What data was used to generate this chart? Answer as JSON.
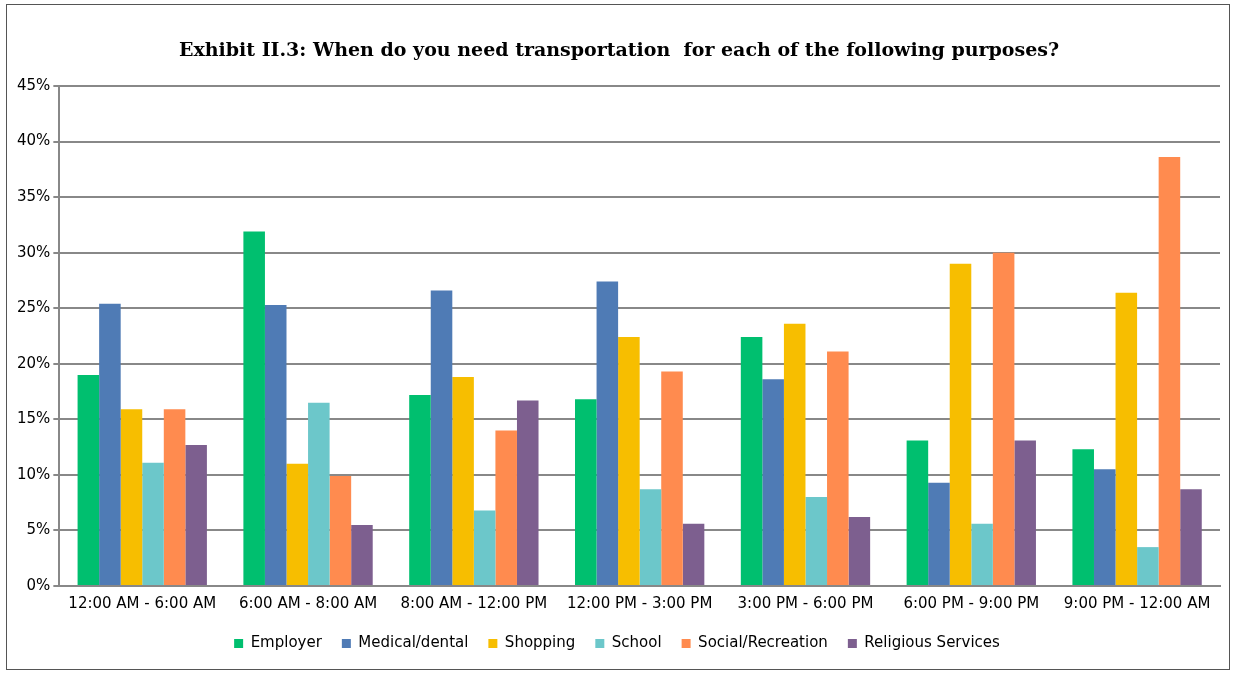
{
  "chart_data": {
    "type": "bar",
    "title": "Exhibit II.3: When do you need transportation  for each of the following purposes?",
    "categories": [
      "12:00 AM - 6:00 AM",
      "6:00 AM - 8:00 AM",
      "8:00 AM - 12:00 PM",
      "12:00 PM - 3:00 PM",
      "3:00 PM - 6:00 PM",
      "6:00 PM - 9:00 PM",
      "9:00 PM - 12:00 AM"
    ],
    "series": [
      {
        "name": "Employer",
        "color": "#00bf6f",
        "values": [
          19.0,
          31.9,
          17.2,
          16.8,
          22.4,
          13.1,
          12.3
        ]
      },
      {
        "name": "Medical/dental",
        "color": "#4f7bb5",
        "values": [
          25.4,
          25.3,
          26.6,
          27.4,
          18.6,
          9.3,
          10.5
        ]
      },
      {
        "name": "Shopping",
        "color": "#f7be00",
        "values": [
          15.9,
          11.0,
          18.8,
          22.4,
          23.6,
          29.0,
          26.4
        ]
      },
      {
        "name": "School",
        "color": "#6cc7ca",
        "values": [
          11.1,
          16.5,
          6.8,
          8.7,
          8.0,
          5.6,
          3.5
        ]
      },
      {
        "name": "Social/Recreation",
        "color": "#ff8b4f",
        "values": [
          15.9,
          9.9,
          14.0,
          19.3,
          21.1,
          30.0,
          38.6
        ]
      },
      {
        "name": "Religious Services",
        "color": "#7d5f8f",
        "values": [
          12.7,
          5.5,
          16.7,
          5.6,
          6.2,
          13.1,
          8.7
        ]
      }
    ],
    "ylim": [
      0,
      45
    ],
    "yticks": [
      {
        "value": 0,
        "label": "0%"
      },
      {
        "value": 5,
        "label": "5%"
      },
      {
        "value": 10,
        "label": "10%"
      },
      {
        "value": 15,
        "label": "15%"
      },
      {
        "value": 20,
        "label": "20%"
      },
      {
        "value": 25,
        "label": "25%"
      },
      {
        "value": 30,
        "label": "30%"
      },
      {
        "value": 35,
        "label": "35%"
      },
      {
        "value": 40,
        "label": "40%"
      },
      {
        "value": 45,
        "label": "45%"
      }
    ],
    "grid": "y",
    "legend": "bottom"
  }
}
